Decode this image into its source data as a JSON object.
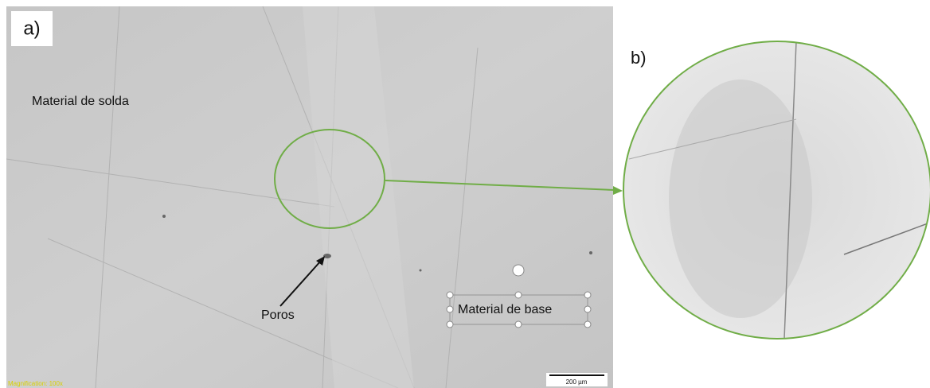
{
  "panel_a": {
    "label": "a)",
    "weld_material": "Material de solda",
    "pores": "Poros",
    "base_material": "Material de base",
    "scale_bar": "200 µm",
    "magnification": "Magnification: 100x"
  },
  "panel_b": {
    "label": "b)"
  }
}
